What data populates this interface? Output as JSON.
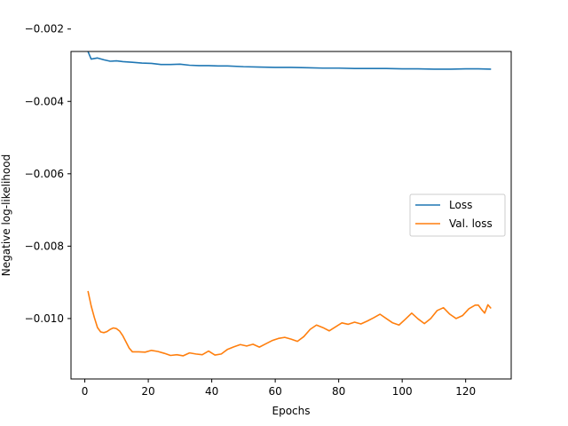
{
  "chart_data": {
    "type": "line",
    "title": "",
    "xlabel": "Epochs",
    "ylabel": "Negative log-likelihood",
    "xlim": [
      -4.35,
      134.35
    ],
    "ylim": [
      -0.01167,
      -0.00262
    ],
    "xticks": [
      0,
      20,
      40,
      60,
      80,
      100,
      120
    ],
    "xtick_labels": [
      "0",
      "20",
      "40",
      "60",
      "80",
      "100",
      "120"
    ],
    "yticks": [
      -0.01,
      -0.008,
      -0.006,
      -0.004,
      -0.002
    ],
    "ytick_labels": [
      "−0.010",
      "−0.008",
      "−0.006",
      "−0.004",
      "−0.002"
    ],
    "grid": false,
    "legend_position": "center-right",
    "series": [
      {
        "name": "Loss",
        "color": "#1f77b4",
        "points": [
          [
            1,
            -0.00262
          ],
          [
            2,
            -0.00283
          ],
          [
            4,
            -0.0028
          ],
          [
            6,
            -0.00285
          ],
          [
            8,
            -0.00289
          ],
          [
            10,
            -0.00288
          ],
          [
            12,
            -0.0029
          ],
          [
            15,
            -0.00292
          ],
          [
            18,
            -0.00294
          ],
          [
            21,
            -0.00295
          ],
          [
            24,
            -0.00298
          ],
          [
            27,
            -0.00298
          ],
          [
            30,
            -0.00297
          ],
          [
            33,
            -0.003
          ],
          [
            36,
            -0.00301
          ],
          [
            39,
            -0.00301
          ],
          [
            42,
            -0.00302
          ],
          [
            45,
            -0.00302
          ],
          [
            50,
            -0.00304
          ],
          [
            55,
            -0.00305
          ],
          [
            60,
            -0.00306
          ],
          [
            65,
            -0.00306
          ],
          [
            70,
            -0.00307
          ],
          [
            75,
            -0.00308
          ],
          [
            80,
            -0.00308
          ],
          [
            85,
            -0.00309
          ],
          [
            90,
            -0.00309
          ],
          [
            95,
            -0.00309
          ],
          [
            100,
            -0.0031
          ],
          [
            105,
            -0.0031
          ],
          [
            110,
            -0.00311
          ],
          [
            115,
            -0.00311
          ],
          [
            120,
            -0.0031
          ],
          [
            124,
            -0.0031
          ],
          [
            128,
            -0.00311
          ]
        ]
      },
      {
        "name": "Val. loss",
        "color": "#ff7f0e",
        "points": [
          [
            1,
            -0.00924
          ],
          [
            2,
            -0.00965
          ],
          [
            3,
            -0.00997
          ],
          [
            4,
            -0.01025
          ],
          [
            5,
            -0.01037
          ],
          [
            6,
            -0.01039
          ],
          [
            7,
            -0.01036
          ],
          [
            8,
            -0.0103
          ],
          [
            9,
            -0.01026
          ],
          [
            10,
            -0.01028
          ],
          [
            11,
            -0.01035
          ],
          [
            12,
            -0.01048
          ],
          [
            13,
            -0.01065
          ],
          [
            14,
            -0.01082
          ],
          [
            15,
            -0.01092
          ],
          [
            17,
            -0.01092
          ],
          [
            19,
            -0.01093
          ],
          [
            21,
            -0.01088
          ],
          [
            23,
            -0.01091
          ],
          [
            25,
            -0.01096
          ],
          [
            27,
            -0.01102
          ],
          [
            29,
            -0.011
          ],
          [
            31,
            -0.01103
          ],
          [
            33,
            -0.01095
          ],
          [
            35,
            -0.01098
          ],
          [
            37,
            -0.011
          ],
          [
            39,
            -0.0109
          ],
          [
            41,
            -0.01101
          ],
          [
            43,
            -0.01098
          ],
          [
            45,
            -0.01085
          ],
          [
            47,
            -0.01078
          ],
          [
            49,
            -0.01072
          ],
          [
            51,
            -0.01076
          ],
          [
            53,
            -0.01071
          ],
          [
            55,
            -0.01079
          ],
          [
            57,
            -0.0107
          ],
          [
            59,
            -0.01061
          ],
          [
            61,
            -0.01055
          ],
          [
            63,
            -0.01052
          ],
          [
            65,
            -0.01057
          ],
          [
            67,
            -0.01063
          ],
          [
            69,
            -0.0105
          ],
          [
            71,
            -0.0103
          ],
          [
            73,
            -0.01018
          ],
          [
            75,
            -0.01025
          ],
          [
            77,
            -0.01034
          ],
          [
            79,
            -0.01023
          ],
          [
            81,
            -0.01012
          ],
          [
            83,
            -0.01016
          ],
          [
            85,
            -0.0101
          ],
          [
            87,
            -0.01015
          ],
          [
            89,
            -0.01007
          ],
          [
            91,
            -0.00998
          ],
          [
            93,
            -0.00988
          ],
          [
            95,
            -0.01
          ],
          [
            97,
            -0.01012
          ],
          [
            99,
            -0.01018
          ],
          [
            101,
            -0.01002
          ],
          [
            103,
            -0.00985
          ],
          [
            105,
            -0.01001
          ],
          [
            107,
            -0.01014
          ],
          [
            109,
            -0.01
          ],
          [
            111,
            -0.00978
          ],
          [
            113,
            -0.0097
          ],
          [
            115,
            -0.00988
          ],
          [
            117,
            -0.01
          ],
          [
            119,
            -0.00992
          ],
          [
            121,
            -0.00973
          ],
          [
            123,
            -0.00963
          ],
          [
            124,
            -0.00963
          ],
          [
            125,
            -0.00975
          ],
          [
            126,
            -0.00985
          ],
          [
            127,
            -0.00962
          ],
          [
            128,
            -0.00972
          ]
        ]
      }
    ]
  }
}
